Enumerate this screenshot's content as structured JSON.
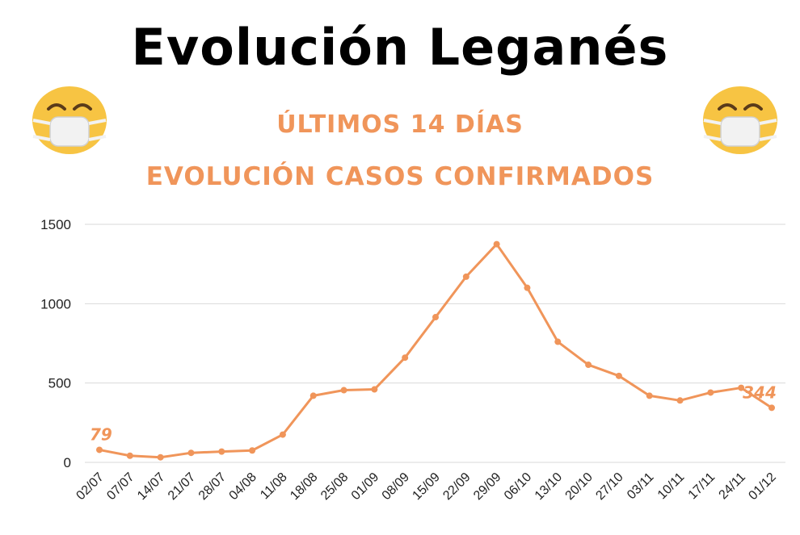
{
  "colors": {
    "accent": "#f0955a",
    "title": "#000000",
    "grid": "#d9d9d9",
    "mask": "#f2f2f2",
    "emoji_face": "#f7c443"
  },
  "icons": {
    "left": "face-with-medical-mask-icon",
    "right": "face-with-medical-mask-icon"
  },
  "chart_data": {
    "type": "line",
    "title": "Evolución Leganés",
    "subtitles": [
      "ÚLTIMOS 14 DÍAS",
      "EVOLUCIÓN CASOS CONFIRMADOS"
    ],
    "xlabel": "",
    "ylabel": "",
    "ylim": [
      0,
      1500
    ],
    "yticks": [
      "0",
      "500",
      "1000",
      "1500"
    ],
    "grid": true,
    "categories": [
      "02/07",
      "07/07",
      "14/07",
      "21/07",
      "28/07",
      "04/08",
      "11/08",
      "18/08",
      "25/08",
      "01/09",
      "08/09",
      "15/09",
      "22/09",
      "29/09",
      "06/10",
      "13/10",
      "20/10",
      "27/10",
      "03/11",
      "10/11",
      "17/11",
      "24/11",
      "01/12"
    ],
    "series": [
      {
        "values": [
          79,
          42,
          32,
          60,
          68,
          75,
          175,
          420,
          455,
          460,
          660,
          915,
          1170,
          1375,
          1100,
          760,
          615,
          545,
          420,
          390,
          440,
          470,
          344
        ]
      }
    ],
    "annotations": [
      {
        "index": 0,
        "text": "79"
      },
      {
        "index": 22,
        "text": "344"
      }
    ]
  }
}
